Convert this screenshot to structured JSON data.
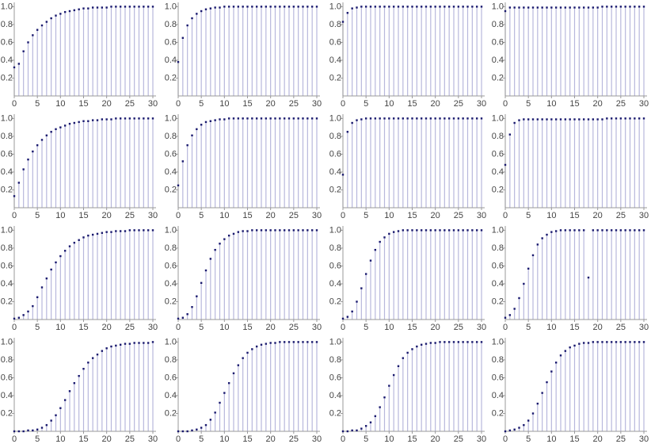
{
  "chart_data": [
    {
      "type": "stem",
      "x": [
        0,
        1,
        2,
        3,
        4,
        5,
        6,
        7,
        8,
        9,
        10,
        11,
        12,
        13,
        14,
        15,
        16,
        17,
        18,
        19,
        20,
        21,
        22,
        23,
        24,
        25,
        26,
        27,
        28,
        29,
        30
      ],
      "values": [
        0.32,
        0.36,
        0.5,
        0.6,
        0.68,
        0.74,
        0.79,
        0.83,
        0.87,
        0.9,
        0.92,
        0.94,
        0.95,
        0.96,
        0.97,
        0.98,
        0.98,
        0.99,
        0.99,
        0.99,
        0.99,
        1,
        1,
        1,
        1,
        1,
        1,
        1,
        1,
        1,
        1
      ],
      "color": "#1a1a6e",
      "stem_color": "#b7b7dc",
      "xlim": [
        0,
        30
      ],
      "ylim": [
        0,
        1.03
      ],
      "xticks": [
        0,
        5,
        10,
        15,
        20,
        25,
        30
      ],
      "yticks": [
        0.2,
        0.4,
        0.6,
        0.8,
        {
          "value": 1,
          "label": "1.0"
        }
      ]
    },
    {
      "type": "stem",
      "x": [
        0,
        1,
        2,
        3,
        4,
        5,
        6,
        7,
        8,
        9,
        10,
        11,
        12,
        13,
        14,
        15,
        16,
        17,
        18,
        19,
        20,
        21,
        22,
        23,
        24,
        25,
        26,
        27,
        28,
        29,
        30
      ],
      "values": [
        0.38,
        0.65,
        0.79,
        0.87,
        0.92,
        0.95,
        0.97,
        0.98,
        0.99,
        0.99,
        1,
        1,
        1,
        1,
        1,
        1,
        1,
        1,
        1,
        1,
        1,
        1,
        1,
        1,
        1,
        1,
        1,
        1,
        1,
        1,
        1
      ],
      "color": "#1a1a6e",
      "stem_color": "#b7b7dc",
      "xlim": [
        0,
        30
      ],
      "ylim": [
        0,
        1.03
      ],
      "xticks": [
        0,
        5,
        10,
        15,
        20,
        25,
        30
      ],
      "yticks": [
        0.2,
        0.4,
        0.6,
        0.8,
        {
          "value": 1,
          "label": "1.0"
        }
      ]
    },
    {
      "type": "stem",
      "x": [
        0,
        1,
        2,
        3,
        4,
        5,
        6,
        7,
        8,
        9,
        10,
        11,
        12,
        13,
        14,
        15,
        16,
        17,
        18,
        19,
        20,
        21,
        22,
        23,
        24,
        25,
        26,
        27,
        28,
        29,
        30
      ],
      "values": [
        0.83,
        0.93,
        0.98,
        0.99,
        1,
        1,
        1,
        1,
        1,
        1,
        1,
        1,
        1,
        1,
        1,
        1,
        1,
        1,
        1,
        1,
        1,
        1,
        1,
        1,
        1,
        1,
        1,
        1,
        1,
        1,
        1
      ],
      "color": "#1a1a6e",
      "stem_color": "#b7b7dc",
      "xlim": [
        0,
        30
      ],
      "ylim": [
        0,
        1.03
      ],
      "xticks": [
        0,
        5,
        10,
        15,
        20,
        25,
        30
      ],
      "yticks": [
        0.2,
        0.4,
        0.6,
        0.8,
        {
          "value": 1,
          "label": "1.0"
        }
      ]
    },
    {
      "type": "stem",
      "x": [
        0,
        1,
        2,
        3,
        4,
        5,
        6,
        7,
        8,
        9,
        10,
        11,
        12,
        13,
        14,
        15,
        16,
        17,
        18,
        19,
        20,
        21,
        22,
        23,
        24,
        25,
        26,
        27,
        28,
        29,
        30
      ],
      "values": [
        0.95,
        0.99,
        0.99,
        0.99,
        0.99,
        0.99,
        0.99,
        0.99,
        0.99,
        0.99,
        0.99,
        0.99,
        0.99,
        0.99,
        0.99,
        0.99,
        0.99,
        0.99,
        0.99,
        0.99,
        0.99,
        1,
        1,
        1,
        1,
        1,
        1,
        1,
        1,
        1,
        1
      ],
      "color": "#1a1a6e",
      "stem_color": "#b7b7dc",
      "xlim": [
        0,
        30
      ],
      "ylim": [
        0,
        1.03
      ],
      "xticks": [
        0,
        5,
        10,
        15,
        20,
        25,
        30
      ],
      "yticks": [
        0.2,
        0.4,
        0.6,
        0.8,
        {
          "value": 1,
          "label": "1.0"
        }
      ]
    },
    {
      "type": "stem",
      "x": [
        0,
        1,
        2,
        3,
        4,
        5,
        6,
        7,
        8,
        9,
        10,
        11,
        12,
        13,
        14,
        15,
        16,
        17,
        18,
        19,
        20,
        21,
        22,
        23,
        24,
        25,
        26,
        27,
        28,
        29,
        30
      ],
      "values": [
        0.13,
        0.28,
        0.43,
        0.54,
        0.63,
        0.7,
        0.76,
        0.81,
        0.85,
        0.88,
        0.9,
        0.92,
        0.94,
        0.95,
        0.96,
        0.97,
        0.97,
        0.98,
        0.98,
        0.99,
        0.99,
        0.99,
        1,
        1,
        1,
        1,
        1,
        1,
        1,
        1,
        1
      ],
      "color": "#1a1a6e",
      "stem_color": "#b7b7dc",
      "xlim": [
        0,
        30
      ],
      "ylim": [
        0,
        1.03
      ],
      "xticks": [
        0,
        5,
        10,
        15,
        20,
        25,
        30
      ],
      "yticks": [
        0.2,
        0.4,
        0.6,
        0.8,
        {
          "value": 1,
          "label": "1.0"
        }
      ]
    },
    {
      "type": "stem",
      "x": [
        0,
        1,
        2,
        3,
        4,
        5,
        6,
        7,
        8,
        9,
        10,
        11,
        12,
        13,
        14,
        15,
        16,
        17,
        18,
        19,
        20,
        21,
        22,
        23,
        24,
        25,
        26,
        27,
        28,
        29,
        30
      ],
      "values": [
        0.25,
        0.52,
        0.7,
        0.81,
        0.88,
        0.93,
        0.96,
        0.97,
        0.98,
        0.99,
        0.99,
        1,
        1,
        1,
        1,
        1,
        1,
        1,
        1,
        1,
        1,
        1,
        1,
        1,
        1,
        1,
        1,
        1,
        1,
        1,
        1
      ],
      "color": "#1a1a6e",
      "stem_color": "#b7b7dc",
      "xlim": [
        0,
        30
      ],
      "ylim": [
        0,
        1.03
      ],
      "xticks": [
        0,
        5,
        10,
        15,
        20,
        25,
        30
      ],
      "yticks": [
        0.2,
        0.4,
        0.6,
        0.8,
        {
          "value": 1,
          "label": "1.0"
        }
      ]
    },
    {
      "type": "stem",
      "x": [
        0,
        1,
        2,
        3,
        4,
        5,
        6,
        7,
        8,
        9,
        10,
        11,
        12,
        13,
        14,
        15,
        16,
        17,
        18,
        19,
        20,
        21,
        22,
        23,
        24,
        25,
        26,
        27,
        28,
        29,
        30
      ],
      "values": [
        0.37,
        0.85,
        0.95,
        0.98,
        0.99,
        1,
        1,
        1,
        1,
        1,
        1,
        1,
        1,
        1,
        1,
        1,
        1,
        1,
        1,
        1,
        1,
        1,
        1,
        1,
        1,
        1,
        1,
        1,
        1,
        1,
        1
      ],
      "color": "#1a1a6e",
      "stem_color": "#b7b7dc",
      "xlim": [
        0,
        30
      ],
      "ylim": [
        0,
        1.03
      ],
      "xticks": [
        0,
        5,
        10,
        15,
        20,
        25,
        30
      ],
      "yticks": [
        0.2,
        0.4,
        0.6,
        0.8,
        {
          "value": 1,
          "label": "1.0"
        }
      ]
    },
    {
      "type": "stem",
      "x": [
        0,
        1,
        2,
        3,
        4,
        5,
        6,
        7,
        8,
        9,
        10,
        11,
        12,
        13,
        14,
        15,
        16,
        17,
        18,
        19,
        20,
        21,
        22,
        23,
        24,
        25,
        26,
        27,
        28,
        29,
        30
      ],
      "values": [
        0.48,
        0.82,
        0.95,
        0.98,
        0.99,
        0.99,
        0.99,
        0.99,
        0.99,
        0.99,
        0.99,
        0.99,
        0.99,
        0.99,
        0.99,
        0.99,
        0.99,
        0.99,
        0.99,
        0.99,
        0.99,
        0.99,
        1,
        1,
        1,
        1,
        1,
        1,
        1,
        1,
        1
      ],
      "color": "#1a1a6e",
      "stem_color": "#b7b7dc",
      "xlim": [
        0,
        30
      ],
      "ylim": [
        0,
        1.03
      ],
      "xticks": [
        0,
        5,
        10,
        15,
        20,
        25,
        30
      ],
      "yticks": [
        0.2,
        0.4,
        0.6,
        0.8,
        {
          "value": 1,
          "label": "1.0"
        }
      ]
    },
    {
      "type": "stem",
      "x": [
        0,
        1,
        2,
        3,
        4,
        5,
        6,
        7,
        8,
        9,
        10,
        11,
        12,
        13,
        14,
        15,
        16,
        17,
        18,
        19,
        20,
        21,
        22,
        23,
        24,
        25,
        26,
        27,
        28,
        29,
        30
      ],
      "values": [
        0.01,
        0.02,
        0.05,
        0.09,
        0.15,
        0.25,
        0.36,
        0.46,
        0.56,
        0.64,
        0.71,
        0.77,
        0.82,
        0.86,
        0.89,
        0.92,
        0.94,
        0.95,
        0.96,
        0.97,
        0.98,
        0.98,
        0.99,
        0.99,
        0.99,
        1,
        1,
        1,
        1,
        1,
        1
      ],
      "color": "#1a1a6e",
      "stem_color": "#b7b7dc",
      "xlim": [
        0,
        30
      ],
      "ylim": [
        0,
        1.03
      ],
      "xticks": [
        0,
        5,
        10,
        15,
        20,
        25,
        30
      ],
      "yticks": [
        0.2,
        0.4,
        0.6,
        0.8,
        {
          "value": 1,
          "label": "1.0"
        }
      ]
    },
    {
      "type": "stem",
      "x": [
        0,
        1,
        2,
        3,
        4,
        5,
        6,
        7,
        8,
        9,
        10,
        11,
        12,
        13,
        14,
        15,
        16,
        17,
        18,
        19,
        20,
        21,
        22,
        23,
        24,
        25,
        26,
        27,
        28,
        29,
        30
      ],
      "values": [
        0.01,
        0.02,
        0.06,
        0.14,
        0.26,
        0.41,
        0.55,
        0.68,
        0.78,
        0.85,
        0.9,
        0.94,
        0.96,
        0.98,
        0.99,
        0.99,
        1,
        1,
        1,
        1,
        1,
        1,
        1,
        1,
        1,
        1,
        1,
        1,
        1,
        1,
        1
      ],
      "color": "#1a1a6e",
      "stem_color": "#b7b7dc",
      "xlim": [
        0,
        30
      ],
      "ylim": [
        0,
        1.03
      ],
      "xticks": [
        0,
        5,
        10,
        15,
        20,
        25,
        30
      ],
      "yticks": [
        0.2,
        0.4,
        0.6,
        0.8,
        {
          "value": 1,
          "label": "1.0"
        }
      ]
    },
    {
      "type": "stem",
      "x": [
        0,
        1,
        2,
        3,
        4,
        5,
        6,
        7,
        8,
        9,
        10,
        11,
        12,
        13,
        14,
        15,
        16,
        17,
        18,
        19,
        20,
        21,
        22,
        23,
        24,
        25,
        26,
        27,
        28,
        29,
        30
      ],
      "values": [
        0.01,
        0.03,
        0.09,
        0.2,
        0.35,
        0.51,
        0.66,
        0.78,
        0.87,
        0.92,
        0.96,
        0.98,
        0.99,
        1,
        1,
        1,
        1,
        1,
        1,
        1,
        1,
        1,
        1,
        1,
        1,
        1,
        1,
        1,
        1,
        1,
        1
      ],
      "color": "#1a1a6e",
      "stem_color": "#b7b7dc",
      "xlim": [
        0,
        30
      ],
      "ylim": [
        0,
        1.03
      ],
      "xticks": [
        0,
        5,
        10,
        15,
        20,
        25,
        30
      ],
      "yticks": [
        0.2,
        0.4,
        0.6,
        0.8,
        {
          "value": 1,
          "label": "1.0"
        }
      ]
    },
    {
      "type": "stem",
      "x": [
        0,
        1,
        2,
        3,
        4,
        5,
        6,
        7,
        8,
        9,
        10,
        11,
        12,
        13,
        14,
        15,
        16,
        17,
        18,
        19,
        20,
        21,
        22,
        23,
        24,
        25,
        26,
        27,
        28,
        29,
        30
      ],
      "values": [
        0.02,
        0.05,
        0.12,
        0.24,
        0.4,
        0.57,
        0.72,
        0.84,
        0.91,
        0.95,
        0.98,
        0.99,
        1,
        1,
        1,
        1,
        1,
        1,
        0.47,
        1,
        1,
        1,
        1,
        1,
        1,
        1,
        1,
        1,
        1,
        1,
        1
      ],
      "color": "#1a1a6e",
      "stem_color": "#b7b7dc",
      "xlim": [
        0,
        30
      ],
      "ylim": [
        0,
        1.03
      ],
      "xticks": [
        0,
        5,
        10,
        15,
        20,
        25,
        30
      ],
      "yticks": [
        0.2,
        0.4,
        0.6,
        0.8,
        {
          "value": 1,
          "label": "1.0"
        }
      ]
    },
    {
      "type": "stem",
      "x": [
        0,
        1,
        2,
        3,
        4,
        5,
        6,
        7,
        8,
        9,
        10,
        11,
        12,
        13,
        14,
        15,
        16,
        17,
        18,
        19,
        20,
        21,
        22,
        23,
        24,
        25,
        26,
        27,
        28,
        29,
        30
      ],
      "values": [
        0,
        0,
        0,
        0.01,
        0.01,
        0.02,
        0.04,
        0.07,
        0.12,
        0.18,
        0.26,
        0.35,
        0.45,
        0.54,
        0.62,
        0.7,
        0.77,
        0.82,
        0.86,
        0.9,
        0.93,
        0.95,
        0.96,
        0.97,
        0.98,
        0.98,
        0.99,
        0.99,
        0.99,
        0.99,
        1
      ],
      "color": "#1a1a6e",
      "stem_color": "#b7b7dc",
      "xlim": [
        0,
        30
      ],
      "ylim": [
        0,
        1.03
      ],
      "xticks": [
        0,
        5,
        10,
        15,
        20,
        25,
        30
      ],
      "yticks": [
        0.2,
        0.4,
        0.6,
        0.8,
        {
          "value": 1,
          "label": "1.0"
        }
      ]
    },
    {
      "type": "stem",
      "x": [
        0,
        1,
        2,
        3,
        4,
        5,
        6,
        7,
        8,
        9,
        10,
        11,
        12,
        13,
        14,
        15,
        16,
        17,
        18,
        19,
        20,
        21,
        22,
        23,
        24,
        25,
        26,
        27,
        28,
        29,
        30
      ],
      "values": [
        0,
        0,
        0,
        0.01,
        0.02,
        0.04,
        0.07,
        0.13,
        0.21,
        0.32,
        0.43,
        0.54,
        0.65,
        0.74,
        0.82,
        0.88,
        0.92,
        0.95,
        0.97,
        0.98,
        0.99,
        0.99,
        1,
        1,
        1,
        1,
        1,
        1,
        1,
        1,
        1
      ],
      "color": "#1a1a6e",
      "stem_color": "#b7b7dc",
      "xlim": [
        0,
        30
      ],
      "ylim": [
        0,
        1.03
      ],
      "xticks": [
        0,
        5,
        10,
        15,
        20,
        25,
        30
      ],
      "yticks": [
        0.2,
        0.4,
        0.6,
        0.8,
        {
          "value": 1,
          "label": "1.0"
        }
      ]
    },
    {
      "type": "stem",
      "x": [
        0,
        1,
        2,
        3,
        4,
        5,
        6,
        7,
        8,
        9,
        10,
        11,
        12,
        13,
        14,
        15,
        16,
        17,
        18,
        19,
        20,
        21,
        22,
        23,
        24,
        25,
        26,
        27,
        28,
        29,
        30
      ],
      "values": [
        0,
        0,
        0.01,
        0.01,
        0.03,
        0.06,
        0.1,
        0.17,
        0.27,
        0.38,
        0.51,
        0.63,
        0.73,
        0.82,
        0.88,
        0.92,
        0.95,
        0.97,
        0.98,
        0.99,
        0.99,
        1,
        1,
        1,
        1,
        1,
        1,
        1,
        1,
        1,
        1
      ],
      "color": "#1a1a6e",
      "stem_color": "#b7b7dc",
      "xlim": [
        0,
        30
      ],
      "ylim": [
        0,
        1.03
      ],
      "xticks": [
        0,
        5,
        10,
        15,
        20,
        25,
        30
      ],
      "yticks": [
        0.2,
        0.4,
        0.6,
        0.8,
        {
          "value": 1,
          "label": "1.0"
        }
      ]
    },
    {
      "type": "stem",
      "x": [
        0,
        1,
        2,
        3,
        4,
        5,
        6,
        7,
        8,
        9,
        10,
        11,
        12,
        13,
        14,
        15,
        16,
        17,
        18,
        19,
        20,
        21,
        22,
        23,
        24,
        25,
        26,
        27,
        28,
        29,
        30
      ],
      "values": [
        0,
        0.01,
        0.02,
        0.04,
        0.07,
        0.12,
        0.2,
        0.31,
        0.43,
        0.55,
        0.67,
        0.77,
        0.85,
        0.9,
        0.94,
        0.96,
        0.98,
        0.99,
        0.99,
        1,
        1,
        1,
        1,
        1,
        1,
        1,
        1,
        1,
        1,
        1,
        1
      ],
      "color": "#1a1a6e",
      "stem_color": "#b7b7dc",
      "xlim": [
        0,
        30
      ],
      "ylim": [
        0,
        1.03
      ],
      "xticks": [
        0,
        5,
        10,
        15,
        20,
        25,
        30
      ],
      "yticks": [
        0.2,
        0.4,
        0.6,
        0.8,
        {
          "value": 1,
          "label": "1.0"
        }
      ]
    }
  ]
}
